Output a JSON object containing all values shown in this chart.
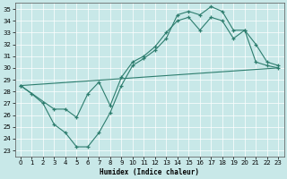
{
  "xlabel": "Humidex (Indice chaleur)",
  "background_color": "#c8e8e8",
  "grid_color": "#ffffff",
  "line_color": "#2d7d6e",
  "xlim": [
    -0.5,
    23.5
  ],
  "ylim": [
    22.5,
    35.5
  ],
  "yticks": [
    23,
    24,
    25,
    26,
    27,
    28,
    29,
    30,
    31,
    32,
    33,
    34,
    35
  ],
  "xticks": [
    0,
    1,
    2,
    3,
    4,
    5,
    6,
    7,
    8,
    9,
    10,
    11,
    12,
    13,
    14,
    15,
    16,
    17,
    18,
    19,
    20,
    21,
    22,
    23
  ],
  "line1_x": [
    0,
    1,
    2,
    3,
    4,
    5,
    6,
    7,
    8,
    9,
    10,
    11,
    12,
    13,
    14,
    15,
    16,
    17,
    18,
    19,
    20,
    21,
    22,
    23
  ],
  "line1_y": [
    28.5,
    27.8,
    27.0,
    25.2,
    24.5,
    23.3,
    23.3,
    24.5,
    26.2,
    28.5,
    30.2,
    30.8,
    31.5,
    32.5,
    34.5,
    34.8,
    34.5,
    35.2,
    34.8,
    33.2,
    33.2,
    32.0,
    30.5,
    30.2
  ],
  "line2_x": [
    0,
    3,
    4,
    5,
    6,
    7,
    8,
    9,
    10,
    11,
    12,
    13,
    14,
    15,
    16,
    17,
    18,
    19,
    20,
    21,
    22,
    23
  ],
  "line2_y": [
    28.5,
    26.5,
    26.5,
    25.8,
    27.8,
    28.8,
    26.8,
    29.2,
    30.5,
    31.0,
    31.8,
    33.0,
    34.0,
    34.3,
    33.2,
    34.3,
    34.0,
    32.5,
    33.2,
    30.5,
    30.2,
    30.0
  ],
  "line3_x": [
    0,
    23
  ],
  "line3_y": [
    28.5,
    30.0
  ]
}
